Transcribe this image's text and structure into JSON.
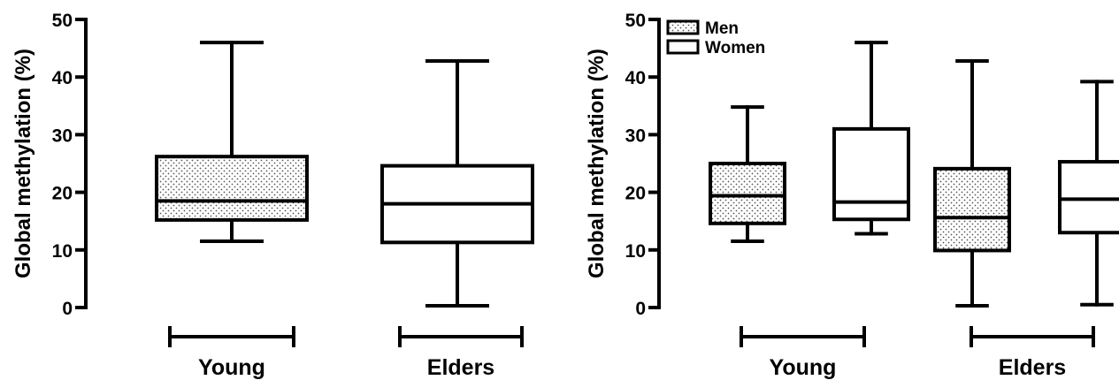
{
  "chart_data": [
    {
      "type": "box",
      "ylabel": "Global methylation (%)",
      "ylim": [
        0,
        50
      ],
      "yticks": [
        0,
        10,
        20,
        30,
        40,
        50
      ],
      "groups": [
        {
          "label": "Young",
          "boxes": [
            {
              "series": "Men",
              "min": 11.5,
              "q1": 15.2,
              "median": 18.5,
              "q3": 26.2,
              "max": 46.0
            }
          ]
        },
        {
          "label": "Elders",
          "boxes": [
            {
              "series": "Women",
              "min": 0.3,
              "q1": 11.3,
              "median": 18.0,
              "q3": 24.6,
              "max": 42.8
            }
          ]
        }
      ],
      "legend": null
    },
    {
      "type": "box",
      "ylabel": "Global methylation (%)",
      "ylim": [
        0,
        50
      ],
      "yticks": [
        0,
        10,
        20,
        30,
        40,
        50
      ],
      "series": [
        {
          "name": "Men",
          "fill": "dotted"
        },
        {
          "name": "Women",
          "fill": "white"
        }
      ],
      "groups": [
        {
          "label": "Young",
          "boxes": [
            {
              "series": "Men",
              "min": 11.5,
              "q1": 14.6,
              "median": 19.4,
              "q3": 25.0,
              "max": 34.8
            },
            {
              "series": "Women",
              "min": 12.8,
              "q1": 15.3,
              "median": 18.3,
              "q3": 31.0,
              "max": 46.0
            }
          ]
        },
        {
          "label": "Elders",
          "boxes": [
            {
              "series": "Men",
              "min": 0.3,
              "q1": 9.9,
              "median": 15.6,
              "q3": 24.1,
              "max": 42.8
            },
            {
              "series": "Women",
              "min": 0.5,
              "q1": 13.0,
              "median": 18.8,
              "q3": 25.3,
              "max": 39.2
            }
          ]
        }
      ],
      "legend": "top-left"
    }
  ]
}
